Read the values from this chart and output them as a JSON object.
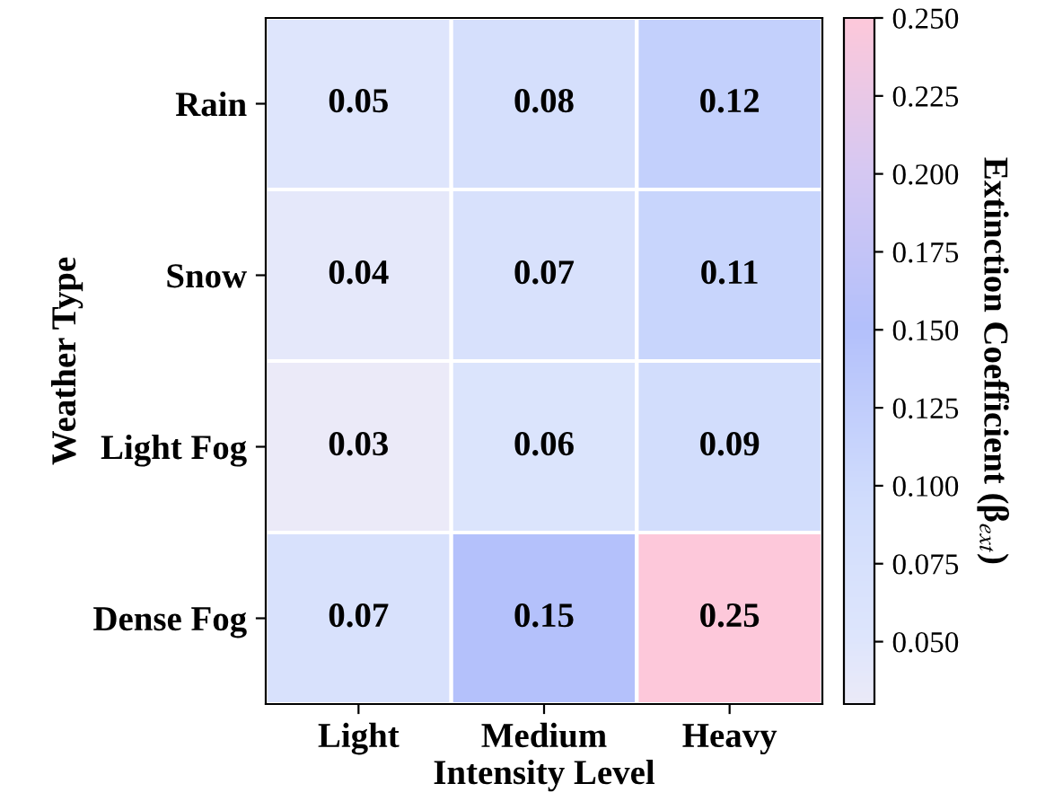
{
  "chart_data": {
    "type": "heatmap",
    "xlabel": "Intensity Level",
    "ylabel": "Weather Type",
    "clabel": "Extinction Coefficient (β$_{ext}$)",
    "categories": [
      "Light",
      "Medium",
      "Heavy"
    ],
    "y_categories": [
      "Rain",
      "Snow",
      "Light Fog",
      "Dense Fog"
    ],
    "cells": [
      [
        0.05,
        0.08,
        0.12
      ],
      [
        0.04,
        0.07,
        0.11
      ],
      [
        0.03,
        0.06,
        0.09
      ],
      [
        0.07,
        0.15,
        0.25
      ]
    ],
    "clim": [
      0.03,
      0.25
    ],
    "cticks": [
      {
        "value": 0.05,
        "label": "0.050"
      },
      {
        "value": 0.075,
        "label": "0.075"
      },
      {
        "value": 0.1,
        "label": "0.100"
      },
      {
        "value": 0.125,
        "label": "0.125"
      },
      {
        "value": 0.15,
        "label": "0.150"
      },
      {
        "value": 0.175,
        "label": "0.175"
      },
      {
        "value": 0.2,
        "label": "0.200"
      },
      {
        "value": 0.225,
        "label": "0.225"
      },
      {
        "value": 0.25,
        "label": "0.250"
      }
    ],
    "data_labels": true
  }
}
